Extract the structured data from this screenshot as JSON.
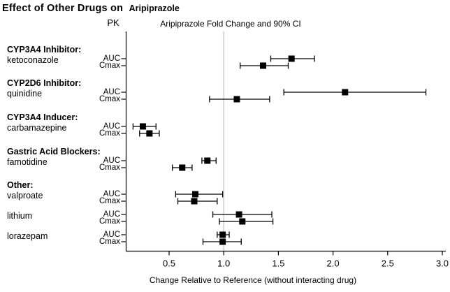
{
  "title": {
    "main": "Effect of Other Drugs on",
    "drug": "Aripiprazole"
  },
  "headers": {
    "pk_column": "PK",
    "plot": "Aripiprazole Fold Change and 90% CI"
  },
  "colors": {
    "marker": "#000000",
    "reference_line": "#cccccc",
    "axis": "#000000",
    "text": "#000000",
    "background": "#ffffff"
  },
  "chart_data": {
    "type": "forest",
    "xlabel": "Change Relative to Reference (without interacting drug)",
    "x_ticks": [
      0.5,
      1.0,
      1.5,
      2.0,
      2.5,
      3.0
    ],
    "x_tick_labels": [
      "0.5",
      "1.0",
      "1.5",
      "2.0",
      "2.5",
      "3.0"
    ],
    "xlim": [
      0.1,
      3.05
    ],
    "reference_x": 1.0,
    "legend": "90% CI",
    "groups": [
      {
        "category": "CYP3A4 Inhibitor:",
        "drug": "ketoconazole",
        "rows": [
          {
            "pk": "AUC",
            "est": 1.62,
            "lo": 1.43,
            "hi": 1.83
          },
          {
            "pk": "Cmax",
            "est": 1.36,
            "lo": 1.15,
            "hi": 1.59
          }
        ]
      },
      {
        "category": "CYP2D6 Inhibitor:",
        "drug": "quinidine",
        "rows": [
          {
            "pk": "AUC",
            "est": 2.11,
            "lo": 1.55,
            "hi": 2.85
          },
          {
            "pk": "Cmax",
            "est": 1.12,
            "lo": 0.87,
            "hi": 1.42
          }
        ]
      },
      {
        "category": "CYP3A4 Inducer:",
        "drug": "carbamazepine",
        "rows": [
          {
            "pk": "AUC",
            "est": 0.26,
            "lo": 0.17,
            "hi": 0.38
          },
          {
            "pk": "Cmax",
            "est": 0.32,
            "lo": 0.23,
            "hi": 0.41
          }
        ]
      },
      {
        "category": "Gastric Acid Blockers:",
        "drug": "famotidine",
        "rows": [
          {
            "pk": "AUC",
            "est": 0.85,
            "lo": 0.8,
            "hi": 0.93
          },
          {
            "pk": "Cmax",
            "est": 0.62,
            "lo": 0.53,
            "hi": 0.71
          }
        ]
      },
      {
        "category": "Other:",
        "drug": "valproate",
        "rows": [
          {
            "pk": "AUC",
            "est": 0.74,
            "lo": 0.56,
            "hi": 0.99
          },
          {
            "pk": "Cmax",
            "est": 0.73,
            "lo": 0.58,
            "hi": 0.94
          }
        ]
      },
      {
        "category": null,
        "drug": "lithium",
        "rows": [
          {
            "pk": "AUC",
            "est": 1.14,
            "lo": 0.9,
            "hi": 1.44
          },
          {
            "pk": "Cmax",
            "est": 1.17,
            "lo": 0.96,
            "hi": 1.45
          }
        ]
      },
      {
        "category": null,
        "drug": "lorazepam",
        "rows": [
          {
            "pk": "AUC",
            "est": 0.99,
            "lo": 0.94,
            "hi": 1.05
          },
          {
            "pk": "Cmax",
            "est": 0.99,
            "lo": 0.81,
            "hi": 1.16
          }
        ]
      }
    ]
  }
}
